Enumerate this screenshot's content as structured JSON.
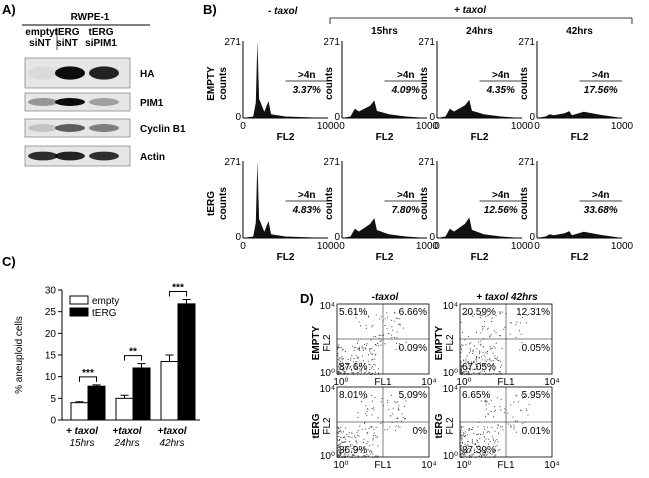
{
  "panel_a": {
    "label": "A)",
    "cell_line": "RWPE-1",
    "lanes": [
      [
        "empty",
        "siNT"
      ],
      [
        "tERG",
        "siNT"
      ],
      [
        "tERG",
        "siPIM1"
      ]
    ],
    "blots": [
      "HA",
      "PIM1",
      "Cyclin B1",
      "Actin"
    ]
  },
  "panel_b": {
    "label": "B)",
    "conditions": [
      "- taxol",
      "+ taxol"
    ],
    "times": [
      "15hrs",
      "24hrs",
      "42hrs"
    ],
    "rows": [
      {
        "name": "EMPTY",
        "percents": [
          "3.37%",
          "4.09%",
          "4.35%",
          "17.56%"
        ]
      },
      {
        "name": "tERG",
        "percents": [
          "4.83%",
          "7.80%",
          "12.56%",
          "33.68%"
        ]
      }
    ],
    "y_label": "counts",
    "x_label": "FL2",
    "gate_label": ">4n",
    "y_ticks": [
      "0",
      "271"
    ],
    "x_ticks": [
      "0",
      "1000"
    ]
  },
  "chart_data": {
    "type": "bar",
    "label": "C)",
    "ylabel": "% aneuploid cells",
    "categories": [
      "+ taxol",
      "+taxol",
      "+taxol"
    ],
    "category_times": [
      "15hrs",
      "24hrs",
      "42hrs"
    ],
    "series": [
      {
        "name": "empty",
        "color": "#ffffff",
        "values": [
          4,
          5,
          13.5
        ],
        "errors": [
          0.2,
          0.7,
          1.5
        ]
      },
      {
        "name": "tERG",
        "color": "#000000",
        "values": [
          7.8,
          12,
          26.8
        ],
        "errors": [
          0.3,
          1,
          1
        ]
      }
    ],
    "annotations": [
      "***",
      "**",
      "***"
    ],
    "ylim": [
      0,
      30
    ],
    "yticks": [
      0,
      5,
      10,
      15,
      20,
      25,
      30
    ],
    "legend": "top-left"
  },
  "panel_d": {
    "label": "D)",
    "conditions": [
      "-taxol",
      "+ taxol 42hrs"
    ],
    "rows": [
      {
        "name": "EMPTY",
        "quadrants": [
          [
            "5.61%",
            "6.66%",
            "87.6%",
            "0.09%"
          ],
          [
            "20.59%",
            "12.31%",
            "67.05%",
            "0.05%"
          ]
        ]
      },
      {
        "name": "tERG",
        "quadrants": [
          [
            "8.01%",
            "5.09%",
            "86.9%",
            "0%"
          ],
          [
            "6.65%",
            "5.95%",
            "87.39%",
            "0.01%"
          ]
        ]
      }
    ],
    "x_label": "FL1",
    "y_label": "FL2",
    "axis_ticks": [
      "10⁰",
      "10⁴"
    ]
  }
}
